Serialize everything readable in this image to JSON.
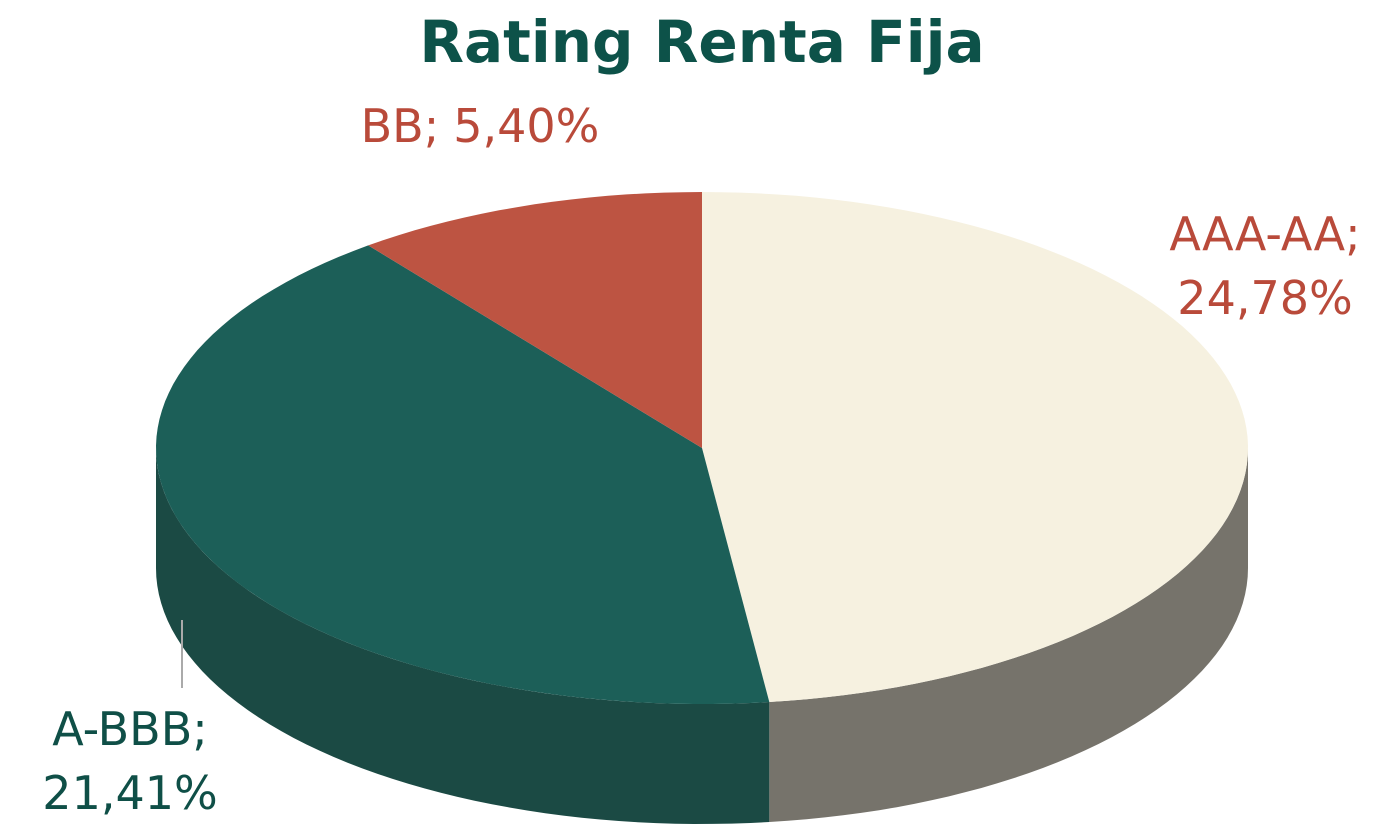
{
  "chart_data": {
    "type": "pie",
    "title": "Rating Renta Fija",
    "categories": [
      "AAA-AA",
      "A-BBB",
      "BB"
    ],
    "values": [
      24.78,
      21.41,
      5.4
    ],
    "value_labels": [
      "24,78%",
      "21,41%",
      "5,40%"
    ],
    "label_separator": ";",
    "colors": [
      "#f6f1e0",
      "#1c5f58",
      "#bd5442"
    ],
    "side_colors": [
      "#76736b",
      "#1b4a44",
      "#8f3d30"
    ],
    "label_colors": [
      "#b94a3a",
      "#0f4f47",
      "#b94a3a"
    ]
  }
}
